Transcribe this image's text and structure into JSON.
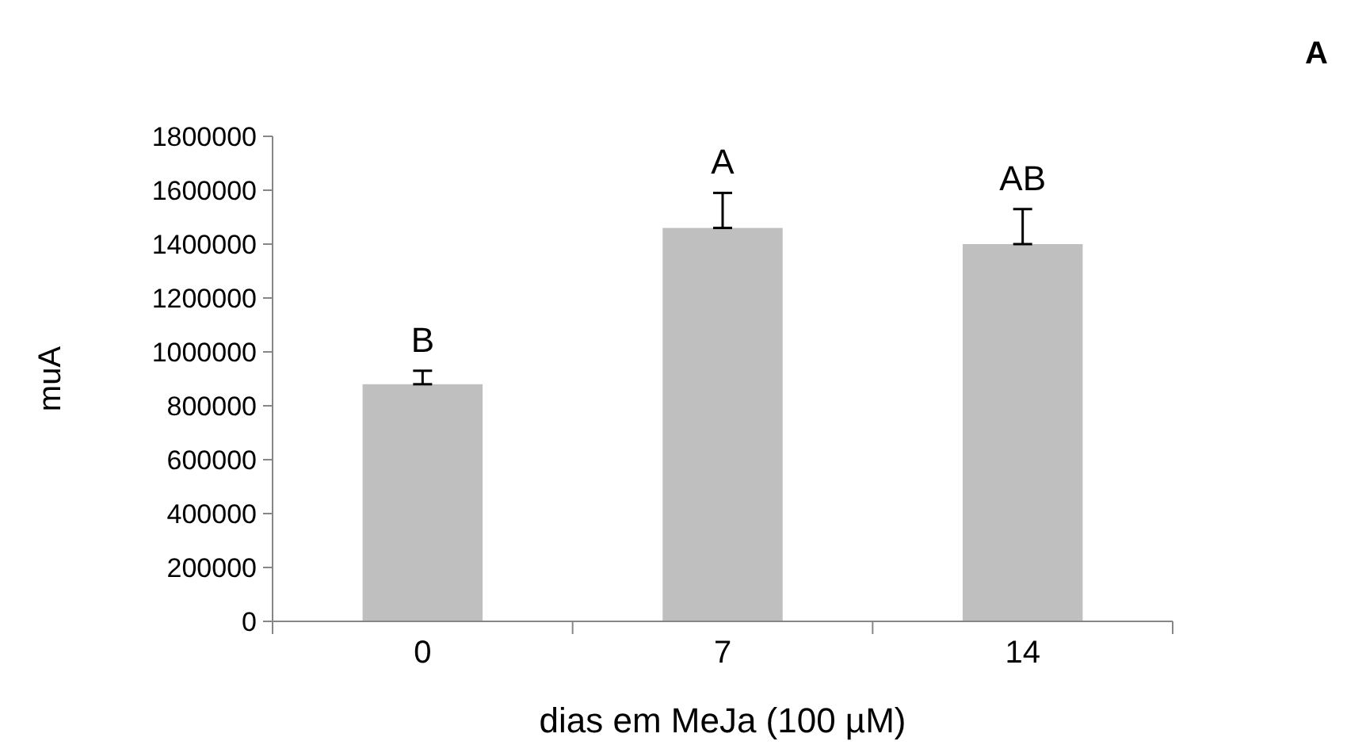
{
  "chart_data": {
    "type": "bar",
    "title": "A",
    "categories": [
      "0",
      "7",
      "14"
    ],
    "values": [
      880000,
      1460000,
      1400000
    ],
    "errors": [
      [
        880000,
        930000
      ],
      [
        1460000,
        1590000
      ],
      [
        1400000,
        1530000
      ]
    ],
    "color": "#bfbfbf",
    "xlabel": "dias em MeJa (100 µM)",
    "ylabel": "muA",
    "ylim": [
      0,
      1800000
    ],
    "yticks": [
      0,
      200000,
      400000,
      600000,
      800000,
      1000000,
      1200000,
      1400000,
      1600000,
      1800000
    ],
    "annotations": [
      {
        "text": "B",
        "x": "0",
        "y": 930000
      },
      {
        "text": "A",
        "x": "7",
        "y": 1590000
      },
      {
        "text": "AB",
        "x": "14",
        "y": 1530000
      }
    ],
    "grid": false
  }
}
